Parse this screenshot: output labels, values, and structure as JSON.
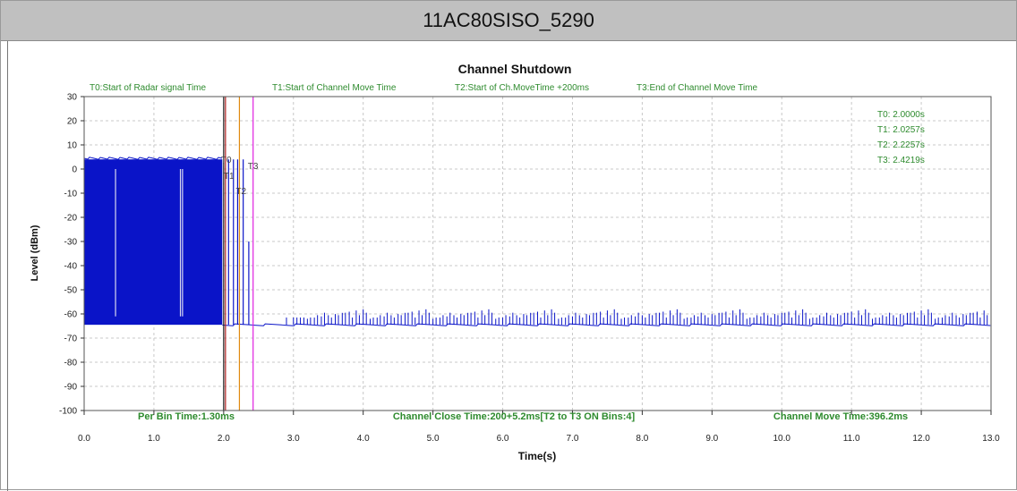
{
  "window": {
    "title": "11AC80SISO_5290"
  },
  "chart_data": {
    "type": "line",
    "title": "Channel Shutdown",
    "xlabel": "Time(s)",
    "ylabel": "Level (dBm)",
    "xlim": [
      0,
      13
    ],
    "ylim": [
      -100,
      30
    ],
    "x_ticks": [
      "0.0",
      "1.0",
      "2.0",
      "3.0",
      "4.0",
      "5.0",
      "6.0",
      "7.0",
      "8.0",
      "9.0",
      "10.0",
      "11.0",
      "12.0",
      "13.0"
    ],
    "y_ticks": [
      "30",
      "20",
      "10",
      "0",
      "-10",
      "-20",
      "-30",
      "-40",
      "-50",
      "-60",
      "-70",
      "-80",
      "-90",
      "-100"
    ],
    "grid": true,
    "noise_floor_dbm": -64.5,
    "radar_level_dbm": 4,
    "burst_region_s": [
      0.0,
      1.98
    ],
    "series": [
      {
        "color": "#0a14c8",
        "spikes": [
          {
            "x": 2.07,
            "y": 4
          },
          {
            "x": 2.14,
            "y": 4
          },
          {
            "x": 2.2,
            "y": 4
          },
          {
            "x": 2.28,
            "y": 4
          },
          {
            "x": 2.36,
            "y": -30
          }
        ],
        "spike_period_s": 0.1,
        "spike_start_s": 3.2,
        "spike_level_range_dbm": [
          -62,
          -54
        ]
      }
    ],
    "markers": [
      {
        "id": "T0",
        "x": 2.0,
        "color": "#1a1a1a",
        "label": "T0"
      },
      {
        "id": "T1",
        "x": 2.0257,
        "color": "#b02020",
        "label": "T1"
      },
      {
        "id": "T2",
        "x": 2.2257,
        "color": "#e08a10",
        "label": "T2"
      },
      {
        "id": "T3",
        "x": 2.4219,
        "color": "#e020e0",
        "label": "T3"
      }
    ],
    "legend_headers": [
      "T0:Start of Radar signal Time",
      "T1:Start of Channel Move Time",
      "T2:Start of Ch.MoveTime +200ms",
      "T3:End of Channel Move Time"
    ],
    "readouts": [
      "T0: 2.0000s",
      "T1: 2.0257s",
      "T2: 2.2257s",
      "T3: 2.4219s"
    ],
    "footer": {
      "per_bin": "Per Bin Time:1.30ms",
      "close_time": "Channel Close Time:200+5.2ms[T2 to T3 ON Bins:4]",
      "move_time": "Channel Move Time:396.2ms"
    },
    "colors": {
      "signal": "#0a14c8",
      "annotation_green": "#2e8b2e",
      "grid": "#c8c8c8"
    }
  }
}
